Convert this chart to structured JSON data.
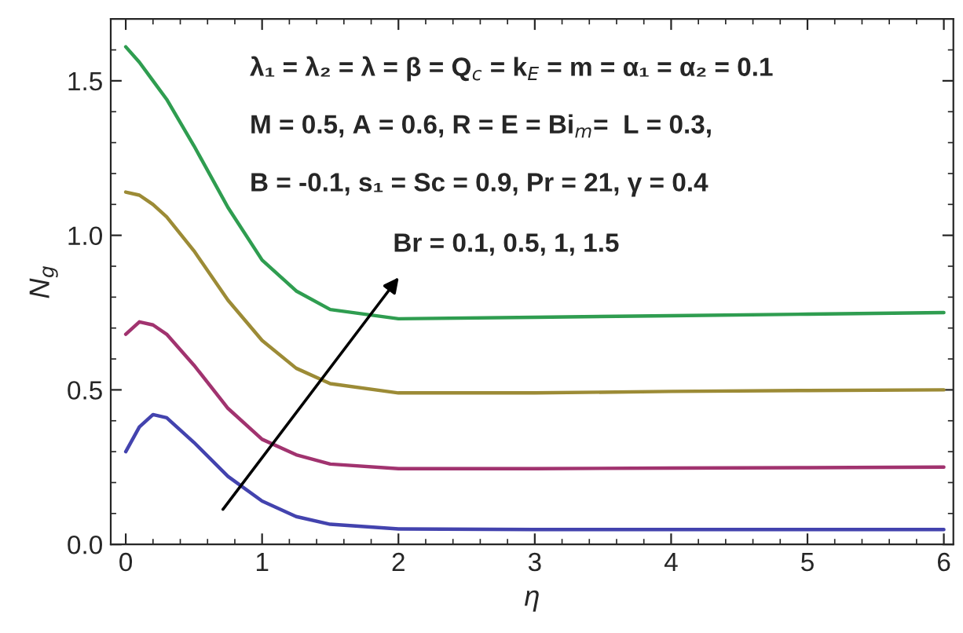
{
  "chart_data": {
    "type": "line",
    "xlabel": "η",
    "ylabel": "N$_{g}$",
    "xlim": [
      -0.11,
      6.07
    ],
    "ylim": [
      0,
      1.7
    ],
    "xticks": [
      0,
      1,
      2,
      3,
      4,
      5,
      6
    ],
    "yticks": [
      {
        "value": 0,
        "label": "0.0"
      },
      {
        "value": 0.5,
        "label": "0.5"
      },
      {
        "value": 1.0,
        "label": "1.0"
      },
      {
        "value": 1.5,
        "label": "1.5"
      }
    ],
    "grid": false,
    "marker": "none",
    "line_style": "solid",
    "x": [
      0,
      0.1,
      0.2,
      0.3,
      0.5,
      0.75,
      1.0,
      1.25,
      1.5,
      2,
      3,
      4,
      5,
      6
    ],
    "series": [
      {
        "color": "#4343ae",
        "values": [
          0.3,
          0.38,
          0.42,
          0.41,
          0.33,
          0.22,
          0.14,
          0.09,
          0.065,
          0.05,
          0.048,
          0.048,
          0.048,
          0.048
        ]
      },
      {
        "color": "#a1336f",
        "values": [
          0.68,
          0.72,
          0.71,
          0.68,
          0.58,
          0.44,
          0.34,
          0.29,
          0.26,
          0.245,
          0.245,
          0.247,
          0.248,
          0.25
        ]
      },
      {
        "color": "#9c8b36",
        "values": [
          1.14,
          1.13,
          1.1,
          1.06,
          0.95,
          0.79,
          0.66,
          0.57,
          0.52,
          0.49,
          0.49,
          0.495,
          0.498,
          0.5
        ]
      },
      {
        "color": "#2f9d50",
        "values": [
          1.61,
          1.56,
          1.5,
          1.44,
          1.29,
          1.09,
          0.92,
          0.82,
          0.76,
          0.73,
          0.735,
          0.74,
          0.745,
          0.75
        ]
      }
    ],
    "annotations": [
      "λ₁ = λ₂ = λ = β = Q$_{c}$ = k$_{E}$ = m = α₁ = α₂ = 0.1",
      "M = 0.5, A = 0.6, R = E = Bi$_{m}$=  L = 0.3,",
      "B = -0.1, s₁ = Sc = 0.9, Pr = 21, γ = 0.4",
      "Br = 0.1, 0.5, 1, 1.5"
    ]
  }
}
